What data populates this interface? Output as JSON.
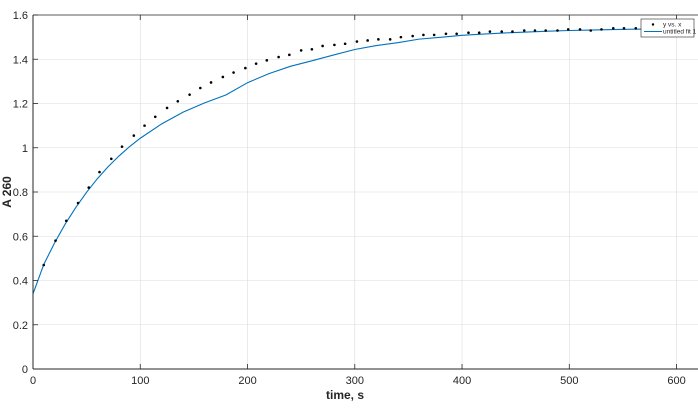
{
  "chart_data": {
    "type": "scatter",
    "xlabel": "time, s",
    "ylabel": "A 260",
    "xlim": [
      0,
      620
    ],
    "ylim": [
      0,
      1.6
    ],
    "x_ticks": [
      0,
      100,
      200,
      300,
      400,
      500,
      600
    ],
    "y_ticks": [
      0,
      0.2,
      0.4,
      0.6,
      0.8,
      1,
      1.2,
      1.4,
      1.6
    ],
    "grid": true,
    "legend_position": "top-right",
    "colors": {
      "data": "#000000",
      "fit": "#0072bd",
      "grid": "#dcdcdc",
      "axis": "#262626"
    },
    "series": [
      {
        "name": "y vs. x",
        "kind": "points",
        "x": [
          10,
          21,
          31,
          42,
          52,
          62,
          73,
          83,
          94,
          104,
          114,
          125,
          135,
          146,
          156,
          166,
          177,
          187,
          198,
          208,
          218,
          229,
          239,
          250,
          260,
          270,
          281,
          291,
          302,
          312,
          322,
          333,
          343,
          354,
          364,
          374,
          385,
          395,
          406,
          416,
          426,
          437,
          447,
          458,
          468,
          478,
          489,
          499,
          510,
          520,
          530,
          541,
          551,
          562,
          572
        ],
        "y": [
          0.47,
          0.58,
          0.67,
          0.75,
          0.82,
          0.89,
          0.95,
          1.005,
          1.055,
          1.1,
          1.14,
          1.18,
          1.21,
          1.24,
          1.27,
          1.295,
          1.32,
          1.34,
          1.36,
          1.38,
          1.395,
          1.41,
          1.42,
          1.44,
          1.445,
          1.46,
          1.465,
          1.47,
          1.48,
          1.485,
          1.49,
          1.49,
          1.5,
          1.505,
          1.51,
          1.51,
          1.515,
          1.515,
          1.52,
          1.52,
          1.525,
          1.525,
          1.525,
          1.53,
          1.53,
          1.53,
          1.53,
          1.535,
          1.535,
          1.53,
          1.535,
          1.54,
          1.54,
          1.54,
          1.54
        ]
      },
      {
        "name": "untitled fit 1",
        "kind": "fit_line",
        "x": [
          0,
          10,
          20,
          30,
          40,
          50,
          60,
          70,
          80,
          90,
          100,
          120,
          140,
          160,
          180,
          200,
          220,
          240,
          260,
          280,
          300,
          320,
          340,
          360,
          380,
          400,
          420,
          440,
          460,
          480,
          500,
          520,
          540,
          560,
          580
        ],
        "y": [
          0.34,
          0.472,
          0.569,
          0.655,
          0.731,
          0.799,
          0.86,
          0.914,
          0.962,
          1.005,
          1.043,
          1.108,
          1.161,
          1.203,
          1.239,
          1.294,
          1.335,
          1.368,
          1.393,
          1.419,
          1.444,
          1.462,
          1.475,
          1.491,
          1.499,
          1.508,
          1.514,
          1.519,
          1.523,
          1.527,
          1.53,
          1.532,
          1.534,
          1.536,
          1.537
        ]
      }
    ]
  }
}
